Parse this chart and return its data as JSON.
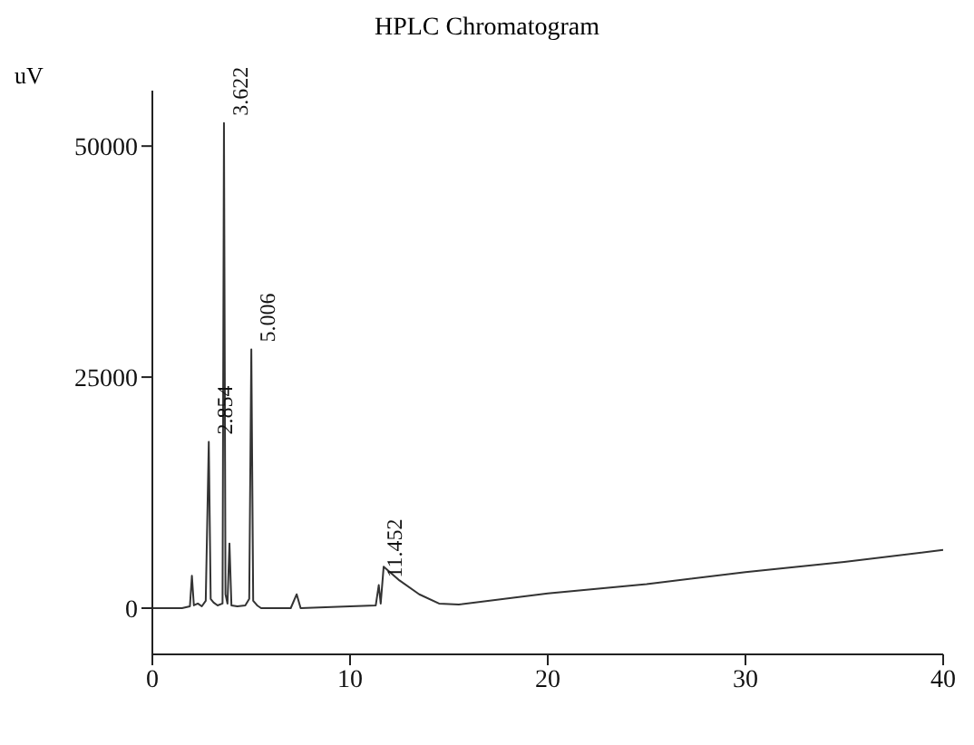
{
  "chart_data": {
    "type": "line",
    "title": "HPLC Chromatogram",
    "ylabel": "uV",
    "x": [
      0,
      1.5,
      1.9,
      2.0,
      2.1,
      2.3,
      2.5,
      2.7,
      2.854,
      2.95,
      3.1,
      3.3,
      3.55,
      3.622,
      3.7,
      3.8,
      3.9,
      4.0,
      4.3,
      4.7,
      4.9,
      5.006,
      5.1,
      5.3,
      5.5,
      7.0,
      7.3,
      7.5,
      10,
      11.3,
      11.452,
      11.55,
      11.7,
      12.5,
      13.5,
      14.5,
      15.5,
      20,
      25,
      30,
      35,
      40
    ],
    "series": [
      {
        "color": "#333333",
        "values": [
          0,
          0,
          200,
          3500,
          300,
          500,
          200,
          800,
          18000,
          1000,
          600,
          300,
          500,
          52500,
          1500,
          500,
          7000,
          300,
          200,
          300,
          1000,
          28000,
          800,
          300,
          0,
          0,
          1500,
          0,
          200,
          300,
          2500,
          500,
          4500,
          3000,
          1500,
          500,
          400,
          1600,
          2600,
          3900,
          5000,
          6300
        ]
      }
    ],
    "annotations": [
      {
        "text": "2.854",
        "x": 2.854,
        "y": 18000
      },
      {
        "text": "3.622",
        "x": 3.622,
        "y": 52500
      },
      {
        "text": "5.006",
        "x": 5.006,
        "y": 28000
      },
      {
        "text": "11.452",
        "x": 11.452,
        "y": 2500
      }
    ],
    "xlim": [
      0,
      40
    ],
    "xticks": [
      0,
      10,
      20,
      30,
      40
    ],
    "ylim": [
      -5000,
      56000
    ],
    "yticks": [
      0,
      25000,
      50000
    ],
    "grid": false,
    "marker": "none",
    "line_style": "solid",
    "legend": false
  }
}
